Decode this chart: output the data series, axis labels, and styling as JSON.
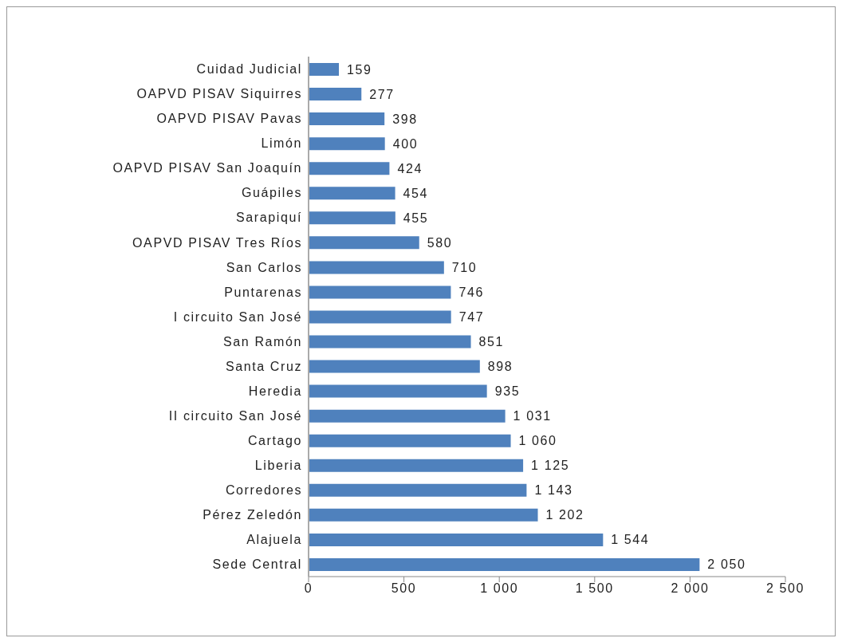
{
  "chart_data": {
    "type": "bar",
    "orientation": "horizontal",
    "categories": [
      "Cuidad Judicial",
      "OAPVD PISAV Siquirres",
      "OAPVD PISAV Pavas",
      "Limón",
      "OAPVD PISAV San Joaquín",
      "Guápiles",
      "Sarapiquí",
      "OAPVD PISAV Tres Ríos",
      "San Carlos",
      "Puntarenas",
      "I circuito San José",
      "San Ramón",
      "Santa Cruz",
      "Heredia",
      "II circuito San José",
      "Cartago",
      "Liberia",
      "Corredores",
      "Pérez Zeledón",
      "Alajuela",
      "Sede Central"
    ],
    "values": [
      159,
      277,
      398,
      400,
      424,
      454,
      455,
      580,
      710,
      746,
      747,
      851,
      898,
      935,
      1031,
      1060,
      1125,
      1143,
      1202,
      1544,
      2050
    ],
    "value_labels": [
      "159",
      "277",
      "398",
      "400",
      "424",
      "454",
      "455",
      "580",
      "710",
      "746",
      "747",
      "851",
      "898",
      "935",
      "1 031",
      "1 060",
      "1 125",
      "1 143",
      "1 202",
      "1 544",
      "2 050"
    ],
    "color": "#4f81bd",
    "xlim": [
      0,
      2500
    ],
    "xticks": [
      0,
      500,
      {
        "value": 1000,
        "label": "1 000"
      },
      {
        "value": 1500,
        "label": "1 500"
      },
      {
        "value": 2000,
        "label": "2 000"
      },
      {
        "value": 2500,
        "label": "2 500"
      }
    ],
    "grid": false,
    "legend": false
  }
}
